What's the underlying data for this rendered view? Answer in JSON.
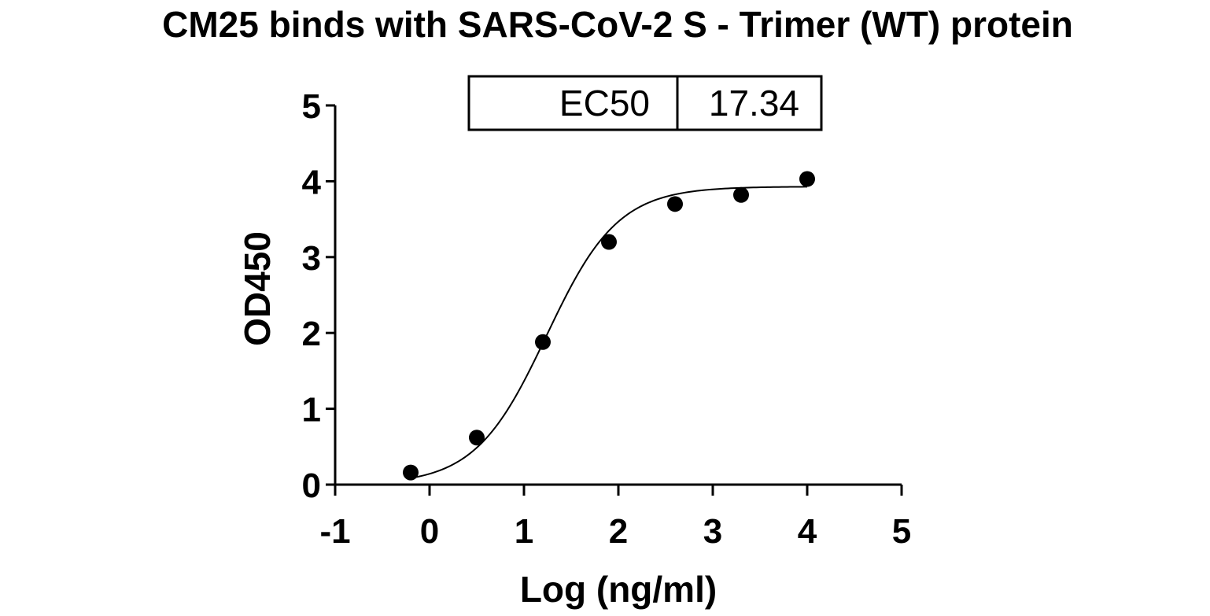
{
  "chart_data": {
    "type": "scatter",
    "title": "CM25 binds with SARS-CoV-2 S - Trimer (WT) protein",
    "xlabel": "Log (ng/ml)",
    "ylabel": "OD450",
    "xlim": [
      -1,
      5
    ],
    "ylim": [
      0,
      5
    ],
    "x_ticks": [
      "-1",
      "0",
      "1",
      "2",
      "3",
      "4",
      "5"
    ],
    "y_ticks": [
      "0",
      "1",
      "2",
      "3",
      "4",
      "5"
    ],
    "series": [
      {
        "x": [
          -0.2,
          0.5,
          1.2,
          1.9,
          2.6,
          3.3,
          4.0
        ],
        "y": [
          0.16,
          0.62,
          1.88,
          3.2,
          3.7,
          3.82,
          4.03
        ]
      }
    ],
    "fit": {
      "type": "four-parameter-logistic",
      "bottom": 0.0,
      "top": 3.93,
      "log_ec50": 1.239,
      "hill_slope": 1.15
    },
    "ec50_table": {
      "label": "EC50",
      "value": "17.34"
    },
    "grid": false,
    "legend": "none",
    "colors": {
      "marker": "#000000",
      "line": "#000000",
      "axis": "#000000"
    }
  }
}
